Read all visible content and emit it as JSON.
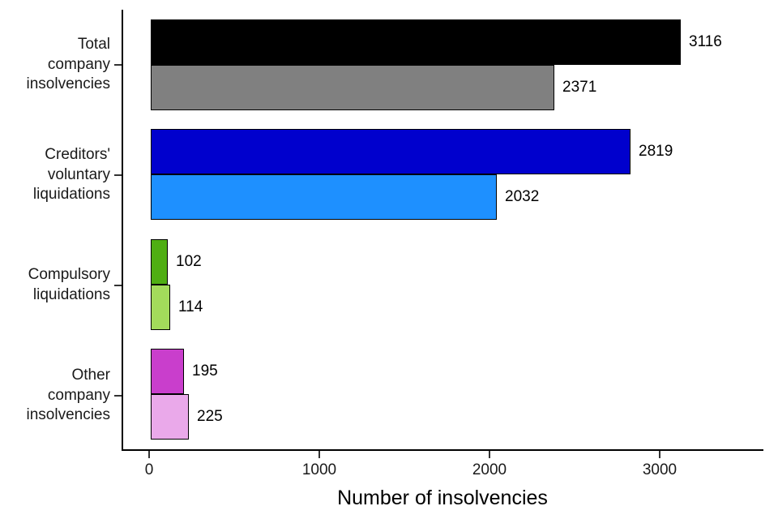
{
  "chart_data": {
    "type": "bar",
    "orientation": "horizontal",
    "title": "",
    "xlabel": "Number of insolvencies",
    "ylabel": "",
    "xlim": [
      0,
      3600
    ],
    "grid": false,
    "legend": "none",
    "xticks": [
      {
        "label": "0",
        "value": 0
      },
      {
        "label": "1000",
        "value": 1000
      },
      {
        "label": "2000",
        "value": 2000
      },
      {
        "label": "3000",
        "value": 3000
      }
    ],
    "groups": [
      {
        "category": "Total company insolvencies",
        "label_lines": [
          "Total",
          "company",
          "insolvencies"
        ],
        "bars": [
          {
            "value": 3116,
            "color": "#000000"
          },
          {
            "value": 2371,
            "color": "#808080"
          }
        ]
      },
      {
        "category": "Creditors' voluntary liquidations",
        "label_lines": [
          "Creditors'",
          "voluntary",
          "liquidations"
        ],
        "bars": [
          {
            "value": 2819,
            "color": "#0000CD"
          },
          {
            "value": 2032,
            "color": "#1E90FF"
          }
        ]
      },
      {
        "category": "Compulsory liquidations",
        "label_lines": [
          "Compulsory",
          "liquidations"
        ],
        "bars": [
          {
            "value": 102,
            "color": "#4FAE13"
          },
          {
            "value": 114,
            "color": "#A3DB5B"
          }
        ]
      },
      {
        "category": "Other company insolvencies",
        "label_lines": [
          "Other",
          "company",
          "insolvencies"
        ],
        "bars": [
          {
            "value": 195,
            "color": "#C93ECC"
          },
          {
            "value": 225,
            "color": "#EAA9EA"
          }
        ]
      }
    ]
  }
}
